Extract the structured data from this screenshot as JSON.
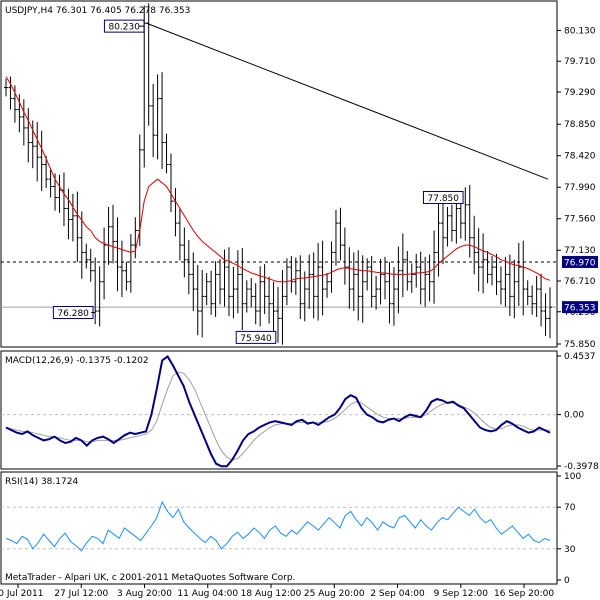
{
  "header": {
    "main": "USDJPY,H4  76.301 76.405 76.278 76.353",
    "macd": "MACD(12,26,9) -0.1375 -0.1202",
    "rsi": "RSI(14) 38.1724",
    "footer": "MetaTrader - Alpari UK, c 2001-2011 MetaQuotes Software Corp."
  },
  "colors": {
    "bars": "#000000",
    "ma": "#dd0000",
    "macd_main": "#000080",
    "macd_signal": "#a0a0a0",
    "rsi": "#1e90ff",
    "current_label_bg": "#000080",
    "level_label_bg": "#000080"
  },
  "chart_data": [
    {
      "type": "bar",
      "title": "USDJPY,H4",
      "ohlc_last": {
        "open": 76.301,
        "high": 76.405,
        "low": 76.278,
        "close": 76.353
      },
      "ylim": [
        75.85,
        80.3
      ],
      "y_ticks": [
        "80.130",
        "79.710",
        "79.290",
        "78.850",
        "78.420",
        "77.990",
        "77.560",
        "77.130",
        "76.710",
        "76.290",
        "75.850"
      ],
      "x_ticks": [
        "20 Jul 2011",
        "27 Jul 12:00",
        "3 Aug 20:00",
        "11 Aug 04:00",
        "18 Aug 12:00",
        "25 Aug 20:00",
        "2 Sep 04:00",
        "9 Sep 12:00",
        "16 Sep 20:00"
      ],
      "close_series": [
        79.35,
        79.2,
        79.05,
        78.95,
        78.8,
        78.6,
        78.55,
        78.4,
        78.3,
        78.1,
        78.0,
        77.85,
        77.95,
        77.7,
        77.55,
        77.6,
        77.3,
        77.1,
        77.0,
        76.85,
        76.3,
        76.7,
        77.2,
        77.45,
        77.25,
        76.9,
        76.85,
        76.7,
        77.2,
        77.4,
        78.5,
        80.23,
        79.1,
        78.7,
        79.2,
        78.6,
        78.3,
        77.8,
        77.5,
        77.2,
        77.0,
        76.8,
        76.6,
        76.3,
        76.5,
        76.7,
        76.4,
        76.8,
        76.6,
        76.9,
        76.5,
        76.6,
        76.8,
        76.4,
        76.6,
        76.5,
        76.3,
        76.7,
        76.5,
        76.4,
        76.3,
        76.2,
        76.5,
        76.9,
        76.7,
        76.85,
        76.4,
        76.6,
        76.8,
        76.5,
        76.9,
        76.6,
        76.7,
        77.1,
        77.5,
        77.2,
        76.9,
        76.6,
        76.8,
        76.5,
        76.7,
        76.9,
        76.5,
        76.6,
        76.8,
        76.7,
        76.4,
        76.6,
        76.85,
        77.0,
        76.7,
        76.8,
        76.9,
        76.6,
        76.8,
        76.7,
        77.1,
        77.5,
        77.3,
        77.6,
        77.4,
        77.7,
        77.5,
        77.75,
        77.3,
        77.1,
        76.9,
        77.0,
        76.8,
        76.9,
        76.7,
        76.6,
        76.8,
        76.5,
        76.7,
        76.9,
        76.6,
        76.5,
        76.4,
        76.6,
        76.3,
        76.2,
        76.353
      ],
      "ma_series": [
        79.5,
        79.4,
        79.28,
        79.15,
        79.02,
        78.9,
        78.77,
        78.64,
        78.52,
        78.38,
        78.24,
        78.1,
        78.0,
        77.9,
        77.82,
        77.72,
        77.62,
        77.54,
        77.45,
        77.4,
        77.3,
        77.25,
        77.22,
        77.2,
        77.18,
        77.16,
        77.14,
        77.12,
        77.1,
        77.12,
        77.4,
        77.8,
        78.0,
        78.05,
        78.1,
        78.05,
        78.0,
        77.9,
        77.8,
        77.7,
        77.6,
        77.5,
        77.4,
        77.32,
        77.25,
        77.2,
        77.15,
        77.1,
        77.05,
        77.0,
        76.98,
        76.95,
        76.92,
        76.88,
        76.85,
        76.82,
        76.8,
        76.78,
        76.76,
        76.74,
        76.72,
        76.7,
        76.7,
        76.7,
        76.72,
        76.74,
        76.75,
        76.75,
        76.76,
        76.77,
        76.78,
        76.79,
        76.8,
        76.83,
        76.86,
        76.88,
        76.89,
        76.88,
        76.87,
        76.86,
        76.85,
        76.85,
        76.84,
        76.83,
        76.82,
        76.82,
        76.81,
        76.8,
        76.8,
        76.8,
        76.8,
        76.81,
        76.82,
        76.82,
        76.83,
        76.84,
        76.88,
        76.95,
        77.0,
        77.05,
        77.1,
        77.15,
        77.18,
        77.2,
        77.2,
        77.18,
        77.15,
        77.12,
        77.1,
        77.07,
        77.04,
        77.0,
        76.98,
        76.95,
        76.93,
        76.92,
        76.9,
        76.88,
        76.85,
        76.82,
        76.78,
        76.74,
        76.72
      ],
      "annotations": [
        "80.230",
        "77.850",
        "76.280",
        "75.940"
      ],
      "current_price": "76.353",
      "level_line": "76.970",
      "trendline": {
        "from_value": 80.23,
        "to_value": 78.1
      }
    },
    {
      "type": "line",
      "title": "MACD(12,26,9)",
      "ylim": [
        -0.3978,
        0.4537
      ],
      "y_ticks": [
        "0.4537",
        "0.00",
        "-0.3978"
      ],
      "series": [
        {
          "name": "MACD",
          "values": [
            -0.1,
            -0.12,
            -0.14,
            -0.15,
            -0.13,
            -0.16,
            -0.18,
            -0.2,
            -0.19,
            -0.17,
            -0.2,
            -0.22,
            -0.21,
            -0.18,
            -0.2,
            -0.24,
            -0.2,
            -0.18,
            -0.17,
            -0.19,
            -0.22,
            -0.19,
            -0.16,
            -0.14,
            -0.15,
            -0.14,
            -0.13,
            0.0,
            0.2,
            0.42,
            0.45,
            0.38,
            0.3,
            0.22,
            0.1,
            0.0,
            -0.1,
            -0.2,
            -0.3,
            -0.38,
            -0.4,
            -0.4,
            -0.35,
            -0.28,
            -0.2,
            -0.15,
            -0.13,
            -0.1,
            -0.08,
            -0.06,
            -0.05,
            -0.06,
            -0.07,
            -0.08,
            -0.05,
            -0.04,
            -0.07,
            -0.06,
            -0.08,
            -0.05,
            -0.02,
            0.0,
            0.05,
            0.12,
            0.15,
            0.13,
            0.05,
            0.0,
            -0.02,
            -0.05,
            -0.06,
            -0.04,
            -0.03,
            -0.05,
            -0.02,
            0.0,
            -0.01,
            -0.02,
            0.03,
            0.1,
            0.12,
            0.11,
            0.09,
            0.1,
            0.07,
            0.05,
            0.0,
            -0.05,
            -0.1,
            -0.12,
            -0.13,
            -0.12,
            -0.08,
            -0.05,
            -0.07,
            -0.1,
            -0.12,
            -0.14,
            -0.13,
            -0.1,
            -0.12,
            -0.14
          ]
        },
        {
          "name": "Signal",
          "values": [
            -0.1,
            -0.11,
            -0.12,
            -0.13,
            -0.13,
            -0.14,
            -0.15,
            -0.16,
            -0.17,
            -0.17,
            -0.18,
            -0.19,
            -0.2,
            -0.2,
            -0.2,
            -0.21,
            -0.21,
            -0.2,
            -0.2,
            -0.2,
            -0.2,
            -0.2,
            -0.19,
            -0.18,
            -0.17,
            -0.16,
            -0.15,
            -0.12,
            -0.05,
            0.08,
            0.2,
            0.3,
            0.33,
            0.32,
            0.27,
            0.2,
            0.1,
            0.0,
            -0.1,
            -0.2,
            -0.28,
            -0.33,
            -0.35,
            -0.34,
            -0.3,
            -0.25,
            -0.2,
            -0.16,
            -0.13,
            -0.1,
            -0.08,
            -0.07,
            -0.07,
            -0.07,
            -0.06,
            -0.06,
            -0.06,
            -0.06,
            -0.06,
            -0.06,
            -0.05,
            -0.03,
            0.0,
            0.04,
            0.08,
            0.1,
            0.09,
            0.06,
            0.03,
            0.0,
            -0.02,
            -0.03,
            -0.03,
            -0.03,
            -0.03,
            -0.02,
            -0.02,
            -0.02,
            0.0,
            0.03,
            0.06,
            0.08,
            0.09,
            0.09,
            0.08,
            0.06,
            0.04,
            0.01,
            -0.03,
            -0.07,
            -0.1,
            -0.11,
            -0.11,
            -0.09,
            -0.08,
            -0.08,
            -0.09,
            -0.11,
            -0.12,
            -0.12,
            -0.12,
            -0.12
          ]
        }
      ]
    },
    {
      "type": "line",
      "title": "RSI(14)",
      "ylim": [
        0,
        100
      ],
      "y_ticks": [
        "100",
        "70",
        "30",
        "0"
      ],
      "series": [
        {
          "name": "RSI",
          "values": [
            40,
            38,
            35,
            42,
            39,
            30,
            36,
            44,
            38,
            32,
            40,
            45,
            37,
            33,
            28,
            36,
            42,
            40,
            35,
            48,
            44,
            40,
            50,
            46,
            42,
            38,
            45,
            52,
            60,
            75,
            66,
            60,
            68,
            56,
            50,
            45,
            40,
            36,
            42,
            38,
            30,
            35,
            42,
            46,
            40,
            44,
            50,
            46,
            40,
            48,
            52,
            45,
            42,
            48,
            44,
            50,
            56,
            52,
            48,
            54,
            60,
            55,
            50,
            62,
            66,
            58,
            52,
            60,
            55,
            48,
            56,
            52,
            50,
            60,
            62,
            56,
            50,
            58,
            52,
            48,
            55,
            60,
            58,
            64,
            70,
            66,
            62,
            68,
            60,
            55,
            58,
            50,
            44,
            48,
            52,
            46,
            40,
            44,
            38,
            36,
            40,
            38
          ]
        }
      ]
    }
  ]
}
